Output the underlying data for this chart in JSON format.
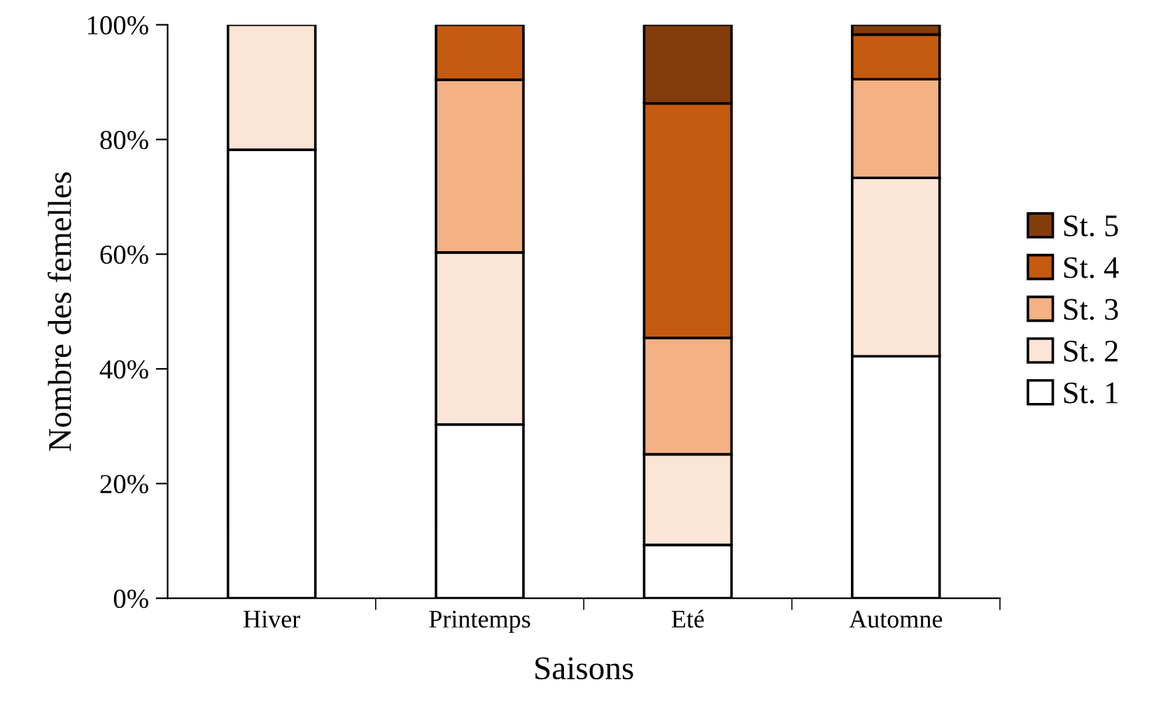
{
  "chart_data": {
    "type": "bar",
    "stacked": true,
    "xlabel": "Saisons",
    "ylabel": "Nombre des femelles",
    "categories": [
      "Hiver",
      "Printemps",
      "Eté",
      "Automne"
    ],
    "series": [
      {
        "name": "St. 1",
        "color": "#ffffff",
        "values": [
          78.2,
          30.3,
          9.3,
          42.2
        ]
      },
      {
        "name": "St. 2",
        "color": "#fbe5d6",
        "values": [
          21.8,
          30.0,
          15.8,
          31.1
        ]
      },
      {
        "name": "St. 3",
        "color": "#f4b183",
        "values": [
          null,
          30.1,
          20.3,
          17.2
        ]
      },
      {
        "name": "St. 4",
        "color": "#c55a11",
        "values": [
          null,
          9.6,
          40.9,
          7.8
        ]
      },
      {
        "name": "St. 5",
        "color": "#843c0c",
        "values": [
          null,
          null,
          13.7,
          1.7
        ]
      }
    ],
    "ylim": [
      0,
      100
    ],
    "yticks": [
      {
        "value": 0,
        "label": "0%"
      },
      {
        "value": 20,
        "label": "20%"
      },
      {
        "value": 40,
        "label": "40%"
      },
      {
        "value": 60,
        "label": "60%"
      },
      {
        "value": 80,
        "label": "80%"
      },
      {
        "value": 100,
        "label": "100%"
      }
    ],
    "grid": false,
    "legend": "right"
  }
}
